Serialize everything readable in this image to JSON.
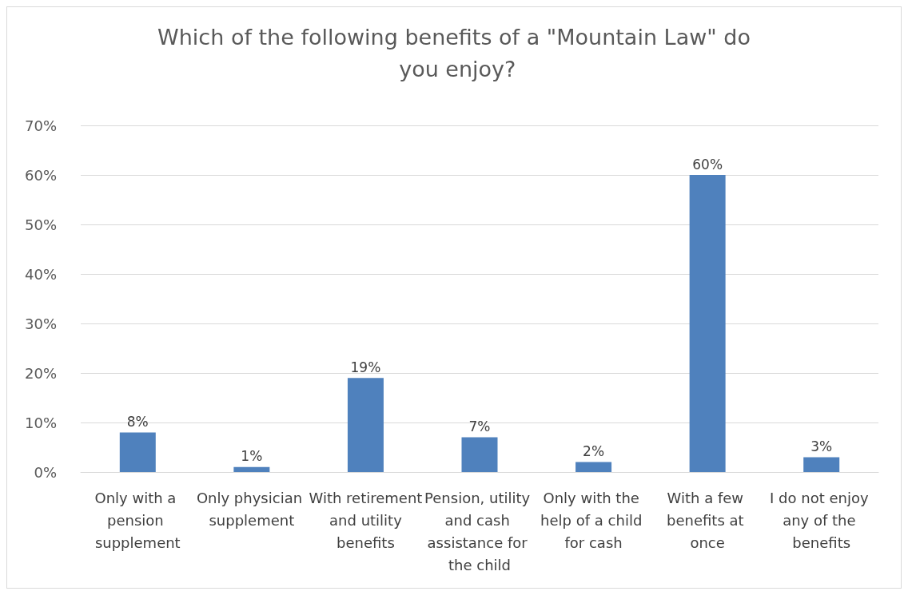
{
  "chart_data": {
    "type": "bar",
    "title": "Which of the following benefits of a \"Mountain Law\" do you enjoy?",
    "categories": [
      "Only with a pension supplement",
      "Only physician supplement",
      "With retirement and utility benefits",
      "Pension, utility and cash assistance for the child",
      "Only with the help of a child for cash",
      "With a few benefits at once",
      "I do not enjoy any of the benefits"
    ],
    "values": [
      8,
      1,
      19,
      7,
      2,
      60,
      3
    ],
    "color": "#4f81bd",
    "ylim": [
      0,
      70
    ],
    "yticks": [
      {
        "value": 0,
        "label": "0%"
      },
      {
        "value": 10,
        "label": "10%"
      },
      {
        "value": 20,
        "label": "20%"
      },
      {
        "value": 30,
        "label": "30%"
      },
      {
        "value": 40,
        "label": "40%"
      },
      {
        "value": 50,
        "label": "50%"
      },
      {
        "value": 60,
        "label": "60%"
      },
      {
        "value": 70,
        "label": "70%"
      }
    ],
    "value_labels": [
      "8%",
      "1%",
      "19%",
      "7%",
      "2%",
      "60%",
      "3%"
    ],
    "grid": "y"
  }
}
